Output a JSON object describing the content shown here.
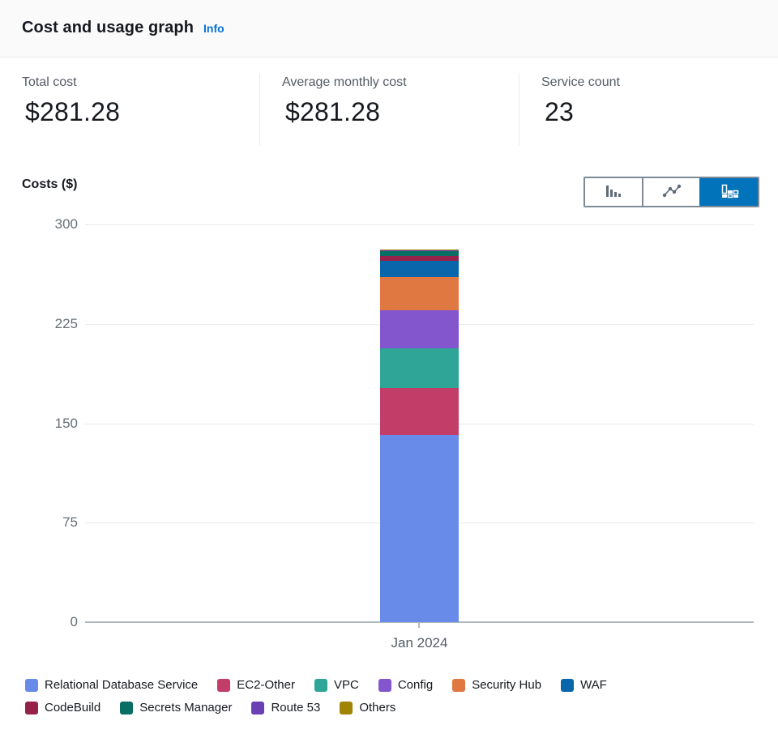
{
  "header": {
    "title": "Cost and usage graph",
    "info_label": "Info"
  },
  "stats": [
    {
      "label": "Total cost",
      "value": "$281.28"
    },
    {
      "label": "Average monthly cost",
      "value": "$281.28"
    },
    {
      "label": "Service count",
      "value": "23"
    }
  ],
  "chart_toolbar": {
    "selected_color": "#0073bb",
    "icon_color": "#5f6b7a",
    "buttons": [
      {
        "name": "bar-chart",
        "selected": false
      },
      {
        "name": "line-chart",
        "selected": false
      },
      {
        "name": "stacked-bar-chart",
        "selected": true
      }
    ]
  },
  "chart_data": {
    "type": "bar",
    "stacked": true,
    "title": "Costs ($)",
    "ylabel": "Costs ($)",
    "categories": [
      "Jan 2024"
    ],
    "series": [
      {
        "name": "Relational Database Service",
        "color": "#688ae8",
        "values": [
          141.0
        ]
      },
      {
        "name": "EC2-Other",
        "color": "#c33d69",
        "values": [
          35.5
        ]
      },
      {
        "name": "VPC",
        "color": "#2ea597",
        "values": [
          30.0
        ]
      },
      {
        "name": "Config",
        "color": "#8456ce",
        "values": [
          28.5
        ]
      },
      {
        "name": "Security Hub",
        "color": "#e07941",
        "values": [
          25.5
        ]
      },
      {
        "name": "WAF",
        "color": "#0a66ab",
        "values": [
          12.0
        ]
      },
      {
        "name": "CodeBuild",
        "color": "#962249",
        "values": [
          3.6
        ]
      },
      {
        "name": "Secrets Manager",
        "color": "#096f64",
        "values": [
          3.6
        ]
      },
      {
        "name": "Route 53",
        "color": "#6b40b2",
        "values": [
          1.2
        ]
      },
      {
        "name": "Others",
        "color": "#a18405",
        "values": [
          0.38
        ]
      }
    ],
    "ylim": [
      0,
      300
    ],
    "yticks": [
      0,
      75,
      150,
      225,
      300
    ],
    "grid": true,
    "legend_position": "bottom",
    "total": 281.28
  }
}
